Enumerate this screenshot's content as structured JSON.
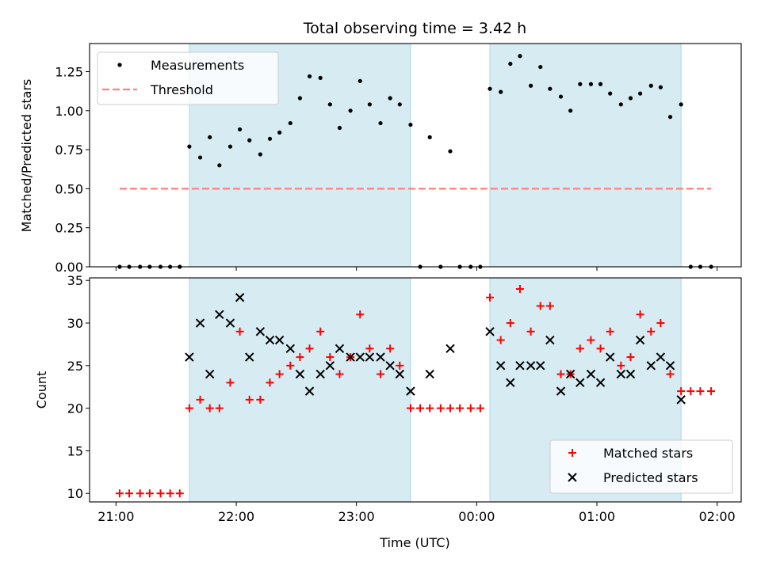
{
  "chart_data": {
    "type": "scatter",
    "title": "Total observing time = 3.42 h",
    "xlabel": "Time (UTC)",
    "x_unit": "hours since 21:00 UTC",
    "xlim": [
      -0.22,
      5.2
    ],
    "x_ticks": [
      {
        "v": 0,
        "label": "21:00"
      },
      {
        "v": 1,
        "label": "22:00"
      },
      {
        "v": 2,
        "label": "23:00"
      },
      {
        "v": 3,
        "label": "00:00"
      },
      {
        "v": 4,
        "label": "01:00"
      },
      {
        "v": 5,
        "label": "02:00"
      }
    ],
    "shaded_spans": [
      [
        0.61,
        2.45
      ],
      [
        3.11,
        4.7
      ]
    ],
    "shade_color": "#add8e6",
    "top_panel": {
      "ylabel": "Matched/Predicted stars",
      "ylim": [
        0,
        1.43
      ],
      "y_ticks": [
        {
          "v": 0.0,
          "label": "0.00"
        },
        {
          "v": 0.25,
          "label": "0.25"
        },
        {
          "v": 0.5,
          "label": "0.50"
        },
        {
          "v": 0.75,
          "label": "0.75"
        },
        {
          "v": 1.0,
          "label": "1.00"
        },
        {
          "v": 1.25,
          "label": "1.25"
        }
      ],
      "series": [
        {
          "name": "Measurements",
          "marker": "dot",
          "color": "#000000",
          "points": [
            [
              0.03,
              0
            ],
            [
              0.11,
              0
            ],
            [
              0.2,
              0
            ],
            [
              0.28,
              0
            ],
            [
              0.37,
              0
            ],
            [
              0.45,
              0
            ],
            [
              0.53,
              0
            ],
            [
              0.61,
              0.77
            ],
            [
              0.7,
              0.7
            ],
            [
              0.78,
              0.83
            ],
            [
              0.86,
              0.65
            ],
            [
              0.95,
              0.77
            ],
            [
              1.03,
              0.88
            ],
            [
              1.11,
              0.81
            ],
            [
              1.2,
              0.72
            ],
            [
              1.28,
              0.82
            ],
            [
              1.36,
              0.86
            ],
            [
              1.45,
              0.92
            ],
            [
              1.53,
              1.08
            ],
            [
              1.61,
              1.22
            ],
            [
              1.7,
              1.21
            ],
            [
              1.78,
              1.04
            ],
            [
              1.86,
              0.89
            ],
            [
              1.95,
              1.0
            ],
            [
              2.03,
              1.19
            ],
            [
              2.11,
              1.04
            ],
            [
              2.2,
              0.92
            ],
            [
              2.28,
              1.08
            ],
            [
              2.36,
              1.04
            ],
            [
              2.45,
              0.91
            ],
            [
              2.53,
              0
            ],
            [
              2.61,
              0.83
            ],
            [
              2.7,
              0
            ],
            [
              2.78,
              0.74
            ],
            [
              2.86,
              0
            ],
            [
              2.95,
              0
            ],
            [
              3.03,
              0
            ],
            [
              3.11,
              1.14
            ],
            [
              3.2,
              1.12
            ],
            [
              3.28,
              1.3
            ],
            [
              3.36,
              1.35
            ],
            [
              3.45,
              1.16
            ],
            [
              3.53,
              1.28
            ],
            [
              3.61,
              1.14
            ],
            [
              3.7,
              1.09
            ],
            [
              3.78,
              1.0
            ],
            [
              3.86,
              1.17
            ],
            [
              3.95,
              1.17
            ],
            [
              4.03,
              1.17
            ],
            [
              4.11,
              1.11
            ],
            [
              4.2,
              1.04
            ],
            [
              4.28,
              1.08
            ],
            [
              4.36,
              1.11
            ],
            [
              4.45,
              1.16
            ],
            [
              4.53,
              1.15
            ],
            [
              4.61,
              0.96
            ],
            [
              4.7,
              1.04
            ],
            [
              4.78,
              0
            ],
            [
              4.86,
              0
            ],
            [
              4.95,
              0
            ]
          ]
        },
        {
          "name": "Threshold",
          "type": "line",
          "style": "dashed",
          "color": "#ff7f7f",
          "points": [
            [
              0.03,
              0.5
            ],
            [
              4.95,
              0.5
            ]
          ]
        }
      ],
      "legend_position": "upper-left"
    },
    "bottom_panel": {
      "ylabel": "Count",
      "ylim": [
        9,
        35.3
      ],
      "y_ticks": [
        {
          "v": 10,
          "label": "10"
        },
        {
          "v": 15,
          "label": "15"
        },
        {
          "v": 20,
          "label": "20"
        },
        {
          "v": 25,
          "label": "25"
        },
        {
          "v": 30,
          "label": "30"
        },
        {
          "v": 35,
          "label": "35"
        }
      ],
      "series": [
        {
          "name": "Matched stars",
          "marker": "plus",
          "color": "#ff0000",
          "points": [
            [
              0.03,
              10
            ],
            [
              0.11,
              10
            ],
            [
              0.2,
              10
            ],
            [
              0.28,
              10
            ],
            [
              0.37,
              10
            ],
            [
              0.45,
              10
            ],
            [
              0.53,
              10
            ],
            [
              0.61,
              20
            ],
            [
              0.7,
              21
            ],
            [
              0.78,
              20
            ],
            [
              0.86,
              20
            ],
            [
              0.95,
              23
            ],
            [
              1.03,
              29
            ],
            [
              1.11,
              21
            ],
            [
              1.2,
              21
            ],
            [
              1.28,
              23
            ],
            [
              1.36,
              24
            ],
            [
              1.45,
              25
            ],
            [
              1.53,
              26
            ],
            [
              1.61,
              27
            ],
            [
              1.7,
              29
            ],
            [
              1.78,
              26
            ],
            [
              1.86,
              24
            ],
            [
              1.95,
              26
            ],
            [
              2.03,
              31
            ],
            [
              2.11,
              27
            ],
            [
              2.2,
              24
            ],
            [
              2.28,
              27
            ],
            [
              2.36,
              25
            ],
            [
              2.45,
              20
            ],
            [
              2.53,
              20
            ],
            [
              2.61,
              20
            ],
            [
              2.7,
              20
            ],
            [
              2.78,
              20
            ],
            [
              2.86,
              20
            ],
            [
              2.95,
              20
            ],
            [
              3.03,
              20
            ],
            [
              3.11,
              33
            ],
            [
              3.2,
              28
            ],
            [
              3.28,
              30
            ],
            [
              3.36,
              34
            ],
            [
              3.45,
              29
            ],
            [
              3.53,
              32
            ],
            [
              3.61,
              32
            ],
            [
              3.7,
              24
            ],
            [
              3.78,
              24
            ],
            [
              3.86,
              27
            ],
            [
              3.95,
              28
            ],
            [
              4.03,
              27
            ],
            [
              4.11,
              29
            ],
            [
              4.2,
              25
            ],
            [
              4.28,
              26
            ],
            [
              4.36,
              31
            ],
            [
              4.45,
              29
            ],
            [
              4.53,
              30
            ],
            [
              4.61,
              24
            ],
            [
              4.7,
              22
            ],
            [
              4.78,
              22
            ],
            [
              4.86,
              22
            ],
            [
              4.95,
              22
            ]
          ]
        },
        {
          "name": "Predicted stars",
          "marker": "x",
          "color": "#000000",
          "points": [
            [
              0.61,
              26
            ],
            [
              0.7,
              30
            ],
            [
              0.78,
              24
            ],
            [
              0.86,
              31
            ],
            [
              0.95,
              30
            ],
            [
              1.03,
              33
            ],
            [
              1.11,
              26
            ],
            [
              1.2,
              29
            ],
            [
              1.28,
              28
            ],
            [
              1.36,
              28
            ],
            [
              1.45,
              27
            ],
            [
              1.53,
              24
            ],
            [
              1.61,
              22
            ],
            [
              1.7,
              24
            ],
            [
              1.78,
              25
            ],
            [
              1.86,
              27
            ],
            [
              1.95,
              26
            ],
            [
              2.03,
              26
            ],
            [
              2.11,
              26
            ],
            [
              2.2,
              26
            ],
            [
              2.28,
              25
            ],
            [
              2.36,
              24
            ],
            [
              2.45,
              22
            ],
            [
              2.61,
              24
            ],
            [
              2.78,
              27
            ],
            [
              3.11,
              29
            ],
            [
              3.2,
              25
            ],
            [
              3.28,
              23
            ],
            [
              3.36,
              25
            ],
            [
              3.45,
              25
            ],
            [
              3.53,
              25
            ],
            [
              3.61,
              28
            ],
            [
              3.7,
              22
            ],
            [
              3.78,
              24
            ],
            [
              3.86,
              23
            ],
            [
              3.95,
              24
            ],
            [
              4.03,
              23
            ],
            [
              4.11,
              26
            ],
            [
              4.2,
              24
            ],
            [
              4.28,
              24
            ],
            [
              4.36,
              28
            ],
            [
              4.45,
              25
            ],
            [
              4.53,
              26
            ],
            [
              4.61,
              25
            ],
            [
              4.7,
              21
            ]
          ]
        }
      ],
      "legend_position": "lower-right"
    }
  }
}
